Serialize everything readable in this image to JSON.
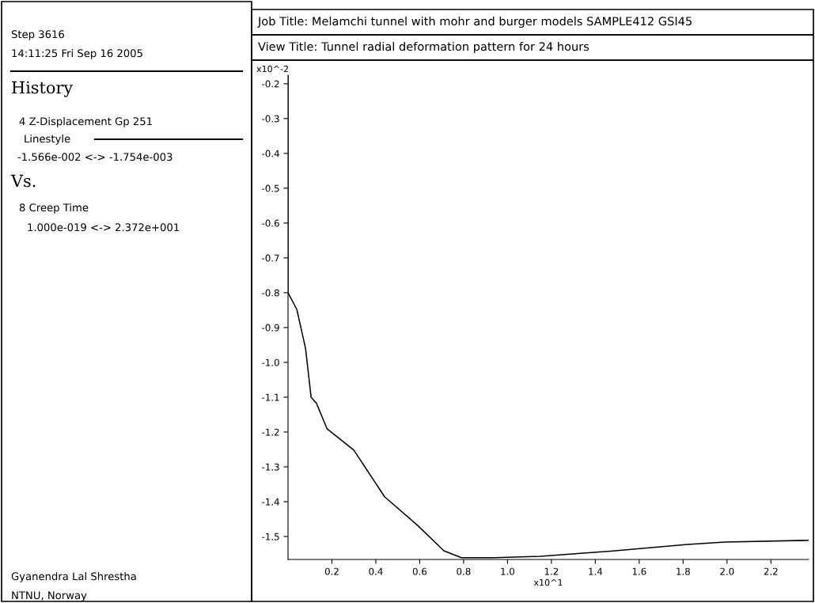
{
  "chart_data": {
    "type": "line",
    "title": "Job Title: Melamchi tunnel with mohr and burger models SAMPLE412 GSI45",
    "subtitle": "View Title: Tunnel radial deformation pattern for 24 hours",
    "xlabel": "x10^1",
    "ylabel": "x10^-2",
    "annotations": [
      "Step 3616",
      "14:11:25 Fri Sep 16 2005",
      "History",
      "4 Z-Displacement Gp 251",
      "Linestyle",
      "-1.566e-002 <-> -1.754e-003",
      "Vs.",
      "8 Creep Time",
      "1.000e-019 <-> 2.372e+001",
      "Gyanendra Lal Shrestha",
      "NTNU, Norway"
    ],
    "series": [
      {
        "color": "#000000",
        "x": [
          0,
          0,
          0.04,
          0.08,
          0.105,
          0.13,
          0.178,
          0.3,
          0.44,
          0.59,
          0.71,
          0.79,
          0.94,
          1.15,
          1.49,
          1.82,
          1.99,
          2.372
        ],
        "values": [
          -0.1754,
          -0.8,
          -0.848,
          -0.96,
          -1.1,
          -1.118,
          -1.191,
          -1.252,
          -1.386,
          -1.468,
          -1.541,
          -1.561,
          -1.561,
          -1.557,
          -1.541,
          -1.523,
          -1.516,
          -1.511
        ]
      }
    ],
    "xlim": [
      0,
      2.372
    ],
    "ylim": [
      -1.566,
      -0.1754
    ],
    "xticks": [
      0.2,
      0.4,
      0.6,
      0.8,
      {
        "value": 1.0,
        "label": "1.0"
      },
      1.2,
      1.4,
      1.6,
      1.8,
      {
        "value": 2.0,
        "label": "2.0"
      },
      2.2
    ],
    "yticks": [
      -0.2,
      -0.3,
      -0.4,
      -0.5,
      -0.6,
      -0.7,
      -0.8,
      -0.9,
      {
        "value": -1.0,
        "label": "-1.0"
      },
      -1.1,
      -1.2,
      -1.3,
      -1.4,
      -1.5
    ],
    "grid": false,
    "legend": false,
    "marker": "none",
    "line_style": "solid"
  }
}
